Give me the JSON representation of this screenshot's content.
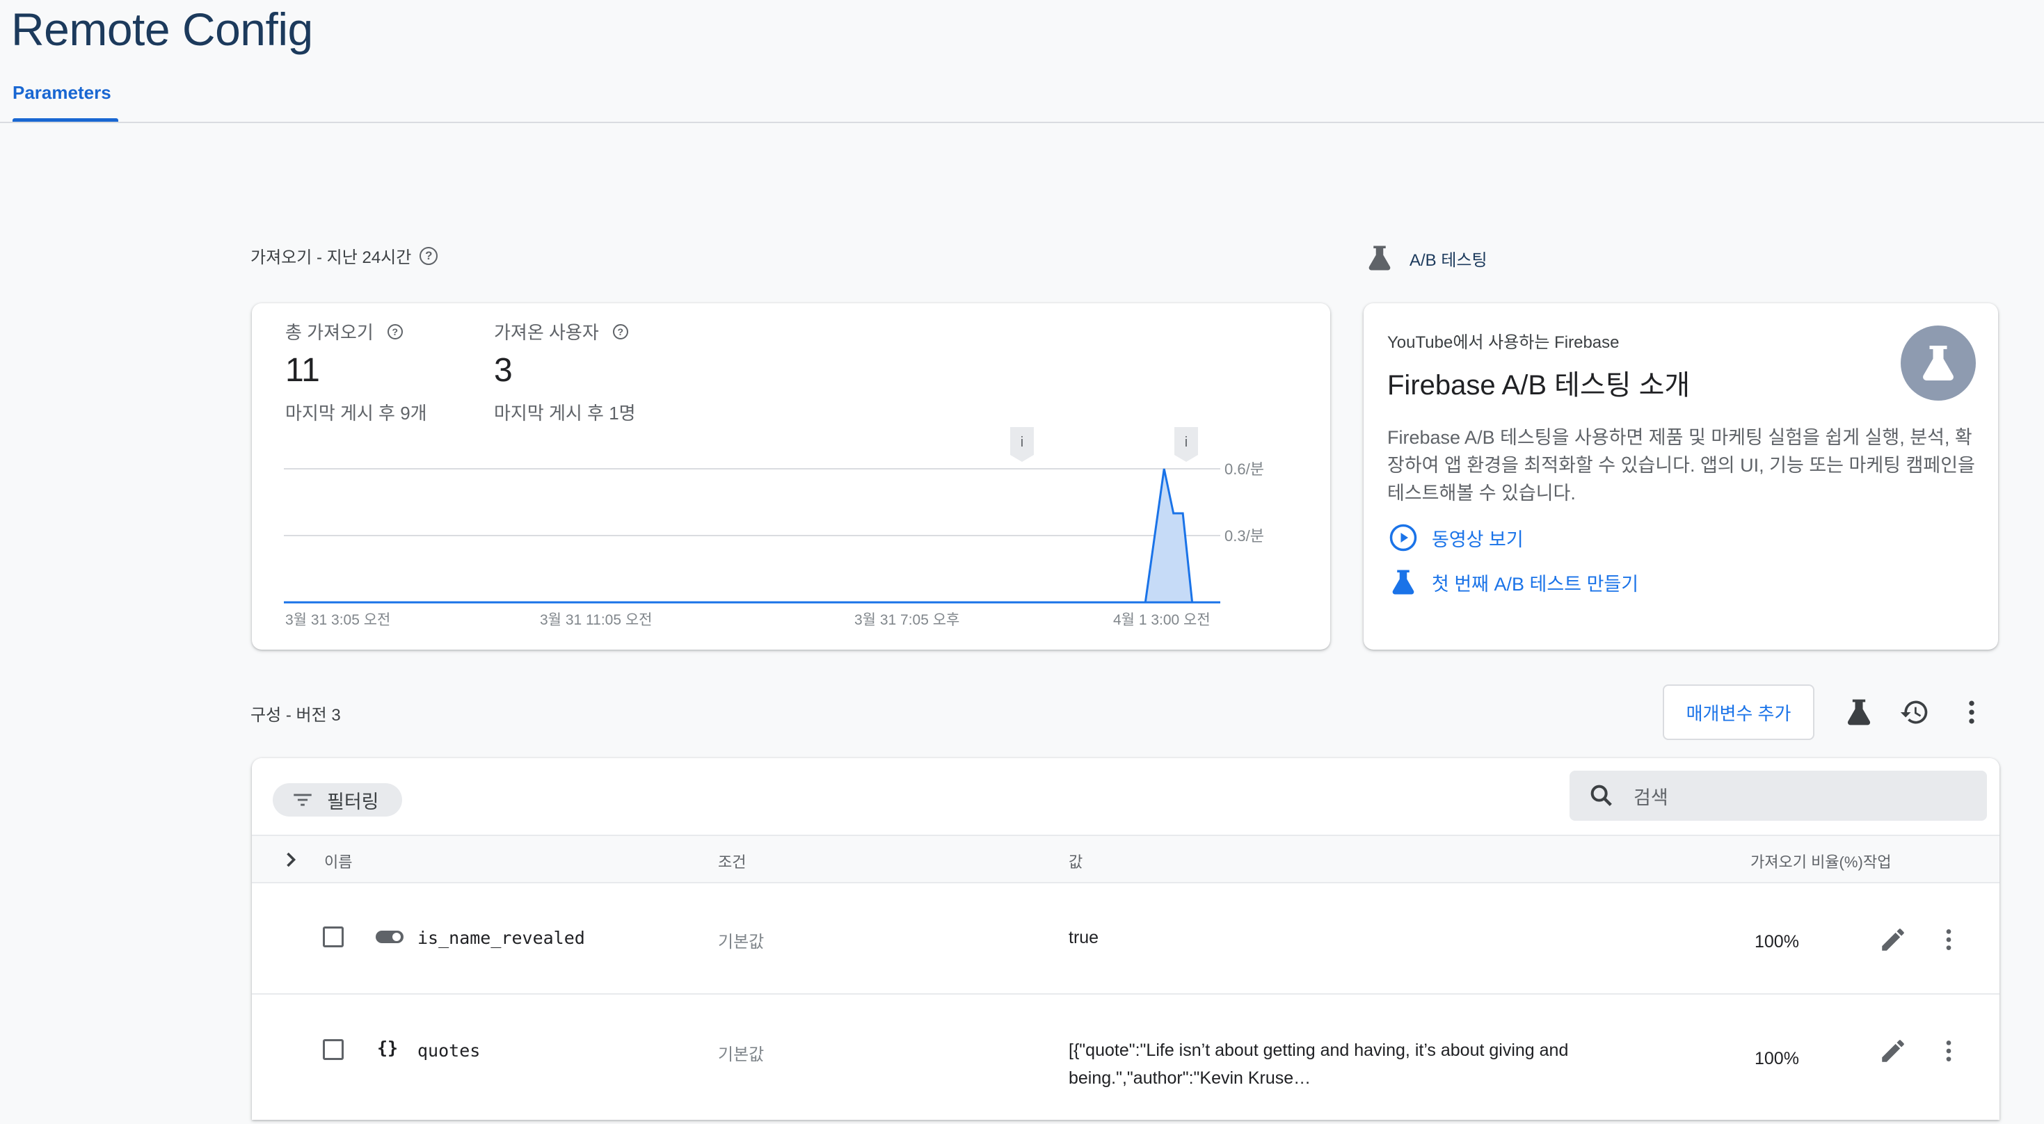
{
  "page": {
    "title": "Remote Config"
  },
  "tabs": [
    {
      "label": "Parameters",
      "active": true
    }
  ],
  "fetch_section": {
    "title": "가져오기 - 지난 24시간",
    "total": {
      "label": "총 가져오기",
      "value": "11",
      "sub": "마지막 게시 후 9개"
    },
    "users": {
      "label": "가져온 사용자",
      "value": "3",
      "sub": "마지막 게시 후 1명"
    }
  },
  "ab_section": {
    "title": "A/B 테스팅",
    "eyebrow": "YouTube에서 사용하는 Firebase",
    "card_title": "Firebase A/B 테스팅 소개",
    "description": "Firebase A/B 테스팅을 사용하면 제품 및 마케팅 실험을 쉽게 실행, 분석, 확장하여 앱 환경을 최적화할 수 있습니다. 앱의 UI, 기능 또는 마케팅 캠페인을 테스트해볼 수 있습니다.",
    "watch_video": "동영상 보기",
    "create_test": "첫 번째 A/B 테스트 만들기"
  },
  "chart_data": {
    "type": "line",
    "x_tick_labels": [
      "3월 31 3:05 오전",
      "3월 31 11:05 오전",
      "3월 31 7:05 오후",
      "4월 1 3:00 오전"
    ],
    "y_tick_labels": [
      "0.6/분",
      "0.3/분"
    ],
    "ylim": [
      0,
      0.6
    ],
    "grid": true,
    "annotation_markers": [
      "i",
      "i"
    ],
    "series": [
      {
        "points": [
          [
            0,
            0
          ],
          [
            92,
            0
          ],
          [
            94,
            0.6
          ],
          [
            95,
            0.4
          ],
          [
            96,
            0.4
          ],
          [
            97,
            0
          ],
          [
            100,
            0
          ]
        ]
      }
    ],
    "colors": {
      "line": "#1a73e8",
      "fill": "#c6dbf7"
    }
  },
  "config": {
    "title": "구성 - 버전 3",
    "add_param_label": "매개변수 추가",
    "filter_label": "필터링",
    "search_placeholder": "검색",
    "columns": {
      "name": "이름",
      "condition": "조건",
      "value": "값",
      "fetch_rate": "가져오기 비율(%)",
      "action": "작업"
    },
    "rows": [
      {
        "name": "is_name_revealed",
        "type_icon": "toggle-icon",
        "condition": "기본값",
        "value": "true",
        "fetch_rate": "100%"
      },
      {
        "name": "quotes",
        "type_icon": "json-braces-icon",
        "condition": "기본값",
        "value_line1": "[{\"quote\":\"Life isn’t about getting and having, it’s about giving and",
        "value_line2": "being.\",\"author\":\"Kevin Kruse…",
        "fetch_rate": "100%"
      }
    ]
  }
}
